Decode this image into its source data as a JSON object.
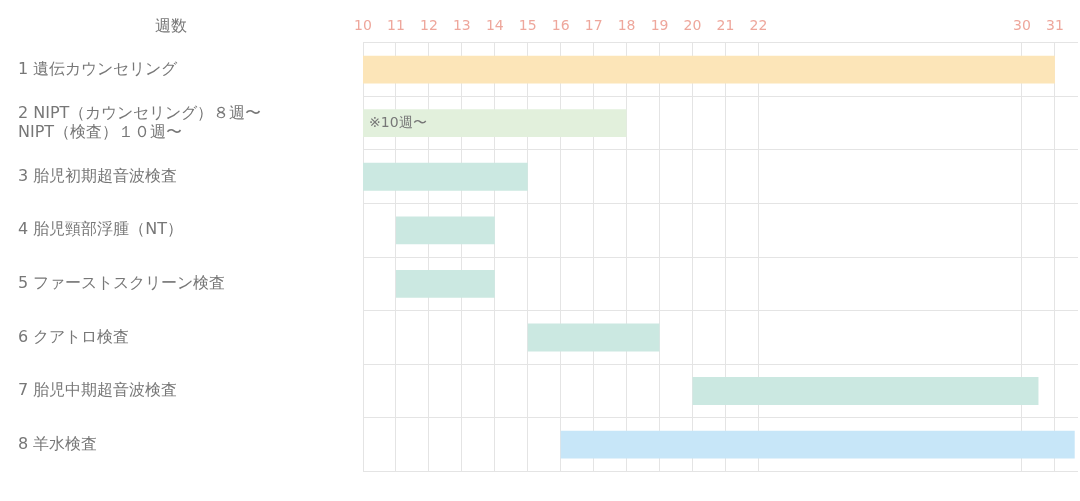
{
  "chart_data": {
    "type": "bar",
    "orientation": "horizontal",
    "ylabel": "週数",
    "categories": [
      "1 遺伝カウンセリング",
      "2 NIPT（カウンセリング）８週〜\nNIPT（検査）１０週〜",
      "3 胎児初期超音波検査",
      "4 胎児頸部浮腫（NT）",
      "5 ファーストスクリーン検査",
      "6 クアトロ検査",
      "7 胎児中期超音波検査",
      "8 羊水検査"
    ],
    "base": [
      10,
      10,
      10,
      11,
      11,
      15,
      20,
      16
    ],
    "values": [
      21,
      8,
      5,
      3,
      3,
      4,
      10.5,
      15.6
    ],
    "colors": [
      "#fce5b8",
      "#e2f0dc",
      "#cbe8e1",
      "#cbe8e1",
      "#cbe8e1",
      "#cbe8e1",
      "#cbe8e1",
      "#c7e6f8"
    ],
    "xlim": [
      10,
      31.7
    ],
    "xticks": [
      10,
      11,
      12,
      13,
      14,
      15,
      16,
      17,
      18,
      19,
      20,
      21,
      22,
      30,
      31
    ],
    "annotations": [
      "※10週〜"
    ],
    "grid": true,
    "legend": false
  }
}
